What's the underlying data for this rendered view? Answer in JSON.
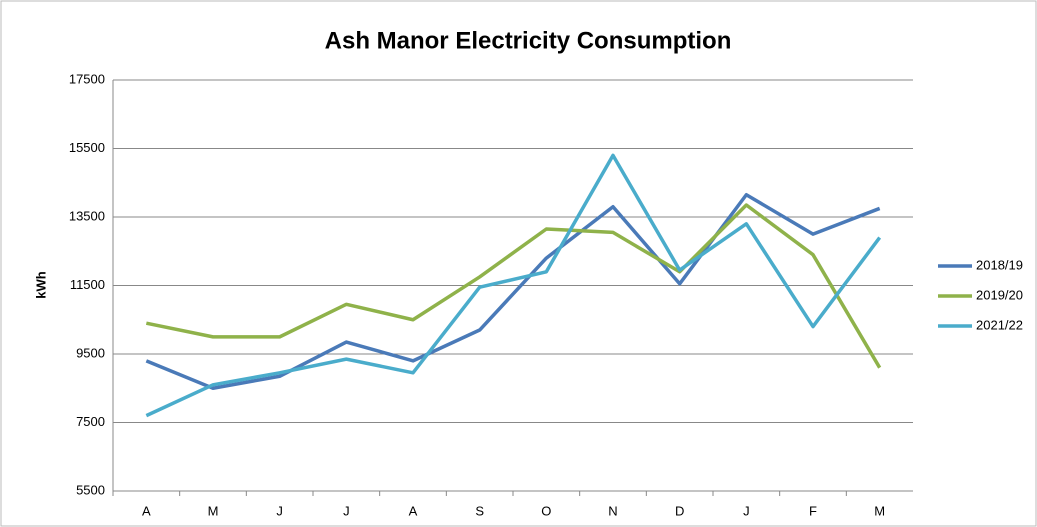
{
  "chart_data": {
    "type": "line",
    "title": "Ash Manor Electricity Consumption",
    "y_label": "kWh",
    "categories": [
      "A",
      "M",
      "J",
      "J",
      "A",
      "S",
      "O",
      "N",
      "D",
      "J",
      "F",
      "M"
    ],
    "series": [
      {
        "name": "2018/19",
        "color": "#4a7ab8",
        "values": [
          9300,
          8500,
          8850,
          9850,
          9300,
          10200,
          12300,
          13800,
          11550,
          14150,
          13000,
          13750
        ]
      },
      {
        "name": "2019/20",
        "color": "#8fb24a",
        "values": [
          10400,
          10000,
          10000,
          10950,
          10500,
          11750,
          13150,
          13050,
          11900,
          13850,
          12400,
          9100
        ]
      },
      {
        "name": "2021/22",
        "color": "#4aaccb",
        "values": [
          7700,
          8600,
          8950,
          9350,
          8950,
          11450,
          11900,
          15300,
          11950,
          13300,
          10300,
          12900
        ]
      }
    ],
    "ylim": [
      5500,
      17500
    ],
    "yticks": [
      5500,
      7500,
      9500,
      11500,
      13500,
      15500,
      17500
    ],
    "grid": true,
    "legend": "right"
  }
}
